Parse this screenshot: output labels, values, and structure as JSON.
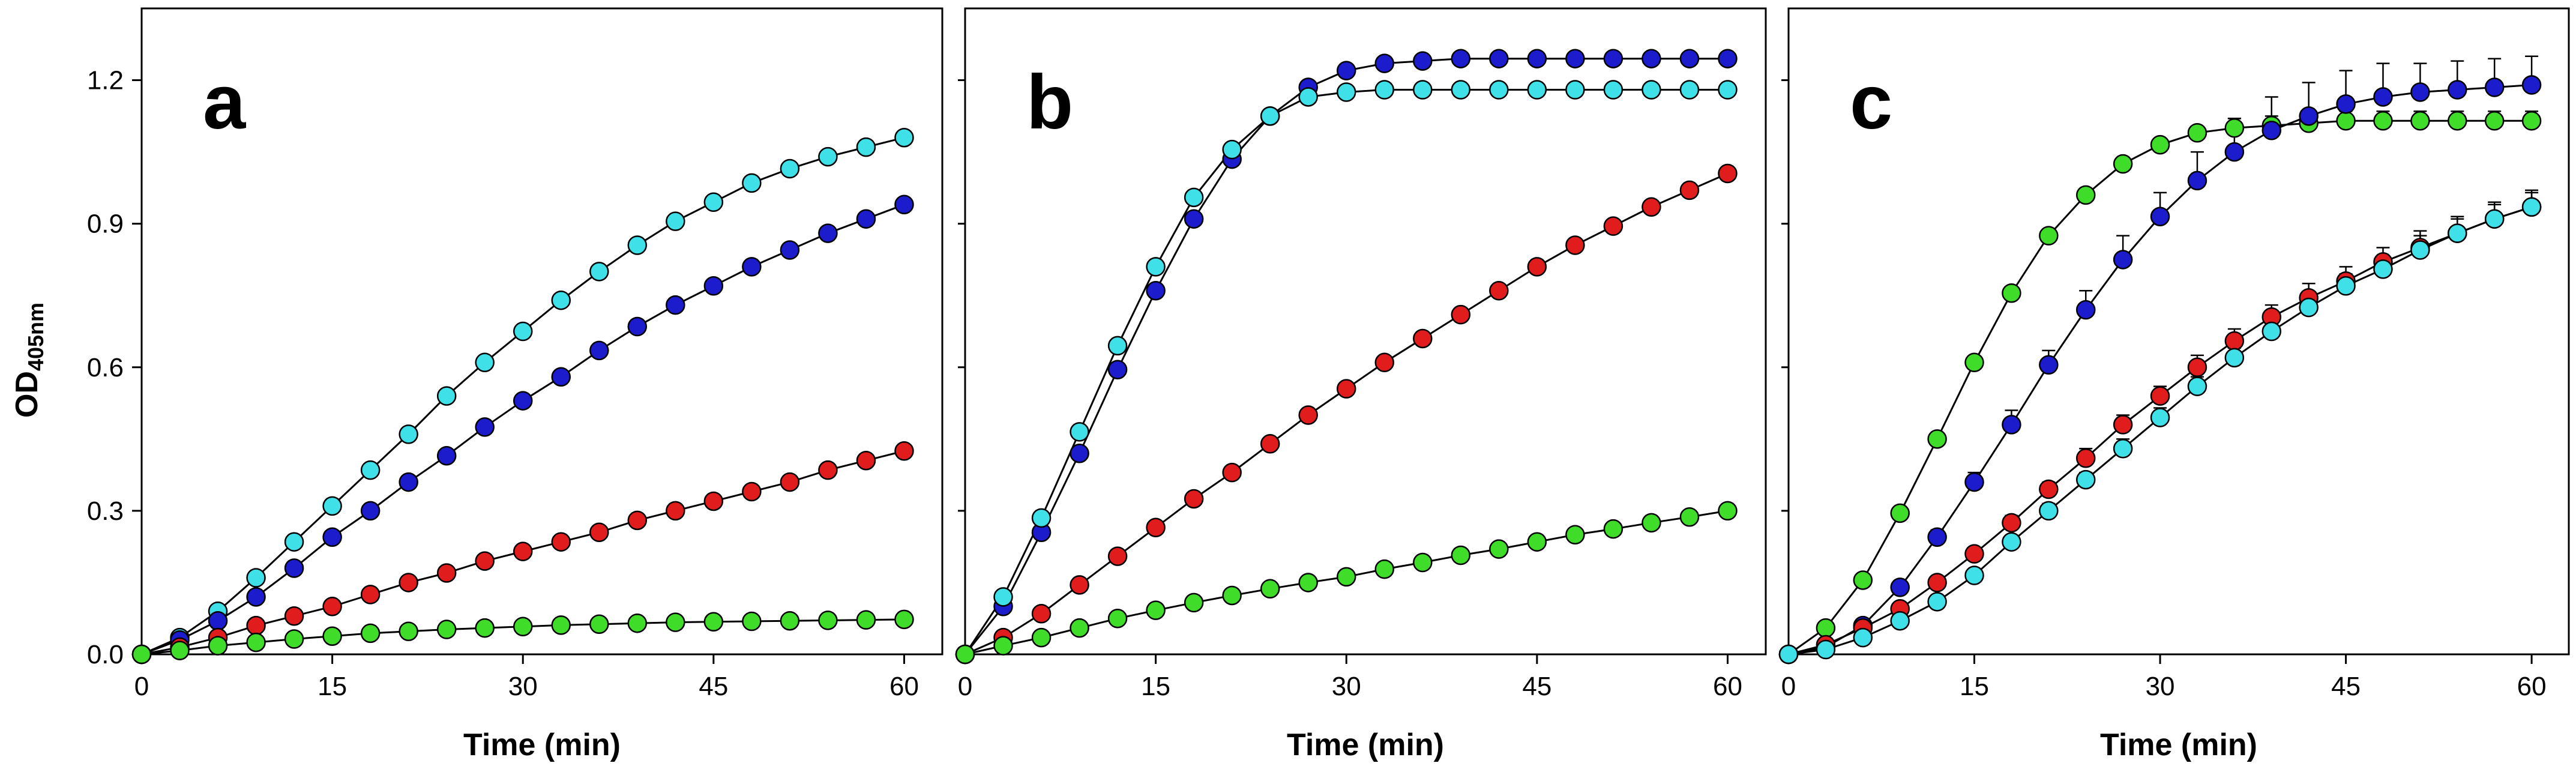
{
  "chart_data": [
    {
      "type": "line",
      "panel_label": "a",
      "xlabel": "Time (min)",
      "ylabel": "OD405nm",
      "ylabel_main": "OD",
      "ylabel_sub": "405nm",
      "xlim": [
        0,
        63
      ],
      "ylim": [
        0,
        1.35
      ],
      "xticks": [
        0,
        15,
        30,
        45,
        60
      ],
      "yticks": [
        0.0,
        0.3,
        0.6,
        0.9,
        1.2
      ],
      "xtick_labels": [
        "0",
        "15",
        "30",
        "45",
        "60"
      ],
      "ytick_labels": [
        "0.0",
        "0.3",
        "0.6",
        "0.9",
        "1.2"
      ],
      "x": [
        0,
        3,
        6,
        9,
        12,
        15,
        18,
        21,
        24,
        27,
        30,
        33,
        36,
        39,
        42,
        45,
        48,
        51,
        54,
        57,
        60
      ],
      "series": [
        {
          "name": "cyan",
          "color": "#3fe0e8",
          "values": [
            0.0,
            0.035,
            0.09,
            0.16,
            0.235,
            0.31,
            0.385,
            0.46,
            0.54,
            0.61,
            0.675,
            0.74,
            0.8,
            0.855,
            0.905,
            0.945,
            0.985,
            1.015,
            1.04,
            1.06,
            1.08
          ]
        },
        {
          "name": "blue",
          "color": "#1c1ccc",
          "values": [
            0.0,
            0.03,
            0.07,
            0.12,
            0.18,
            0.245,
            0.3,
            0.36,
            0.415,
            0.475,
            0.53,
            0.58,
            0.635,
            0.685,
            0.73,
            0.77,
            0.81,
            0.845,
            0.88,
            0.91,
            0.94
          ]
        },
        {
          "name": "red",
          "color": "#e01c1c",
          "values": [
            0.0,
            0.015,
            0.035,
            0.06,
            0.08,
            0.1,
            0.125,
            0.15,
            0.17,
            0.195,
            0.215,
            0.235,
            0.255,
            0.28,
            0.3,
            0.32,
            0.34,
            0.36,
            0.385,
            0.405,
            0.425
          ]
        },
        {
          "name": "green",
          "color": "#3fdc2a",
          "values": [
            0.0,
            0.008,
            0.018,
            0.025,
            0.032,
            0.038,
            0.044,
            0.048,
            0.052,
            0.055,
            0.058,
            0.061,
            0.063,
            0.065,
            0.067,
            0.068,
            0.069,
            0.07,
            0.071,
            0.072,
            0.073
          ]
        }
      ],
      "error_bars": false
    },
    {
      "type": "line",
      "panel_label": "b",
      "xlabel": "Time (min)",
      "xlim": [
        0,
        63
      ],
      "ylim": [
        0,
        1.35
      ],
      "xticks": [
        0,
        15,
        30,
        45,
        60
      ],
      "yticks": [
        0.0,
        0.3,
        0.6,
        0.9,
        1.2
      ],
      "xtick_labels": [
        "0",
        "15",
        "30",
        "45",
        "60"
      ],
      "x": [
        0,
        3,
        6,
        9,
        12,
        15,
        18,
        21,
        24,
        27,
        30,
        33,
        36,
        39,
        42,
        45,
        48,
        51,
        54,
        57,
        60
      ],
      "series": [
        {
          "name": "blue",
          "color": "#1c1ccc",
          "values": [
            0.0,
            0.1,
            0.255,
            0.42,
            0.595,
            0.76,
            0.91,
            1.035,
            1.125,
            1.185,
            1.22,
            1.235,
            1.24,
            1.245,
            1.245,
            1.245,
            1.245,
            1.245,
            1.245,
            1.245,
            1.245
          ]
        },
        {
          "name": "cyan",
          "color": "#3fe0e8",
          "values": [
            0.0,
            0.12,
            0.285,
            0.465,
            0.645,
            0.81,
            0.955,
            1.055,
            1.125,
            1.165,
            1.175,
            1.18,
            1.18,
            1.18,
            1.18,
            1.18,
            1.18,
            1.18,
            1.18,
            1.18,
            1.18
          ]
        },
        {
          "name": "red",
          "color": "#e01c1c",
          "values": [
            0.0,
            0.035,
            0.085,
            0.145,
            0.205,
            0.265,
            0.325,
            0.38,
            0.44,
            0.5,
            0.555,
            0.61,
            0.66,
            0.71,
            0.76,
            0.81,
            0.855,
            0.895,
            0.935,
            0.97,
            1.005
          ]
        },
        {
          "name": "green",
          "color": "#3fdc2a",
          "values": [
            0.0,
            0.018,
            0.035,
            0.055,
            0.075,
            0.092,
            0.108,
            0.123,
            0.137,
            0.15,
            0.162,
            0.178,
            0.192,
            0.207,
            0.22,
            0.235,
            0.25,
            0.262,
            0.275,
            0.287,
            0.3
          ]
        }
      ],
      "error_bars": false
    },
    {
      "type": "line",
      "panel_label": "c",
      "xlabel": "Time (min)",
      "xlim": [
        0,
        63
      ],
      "ylim": [
        0,
        1.35
      ],
      "xticks": [
        0,
        15,
        30,
        45,
        60
      ],
      "yticks": [
        0.0,
        0.3,
        0.6,
        0.9,
        1.2
      ],
      "xtick_labels": [
        "0",
        "15",
        "30",
        "45",
        "60"
      ],
      "x": [
        0,
        3,
        6,
        9,
        12,
        15,
        18,
        21,
        24,
        27,
        30,
        33,
        36,
        39,
        42,
        45,
        48,
        51,
        54,
        57,
        60
      ],
      "series": [
        {
          "name": "green",
          "color": "#3fdc2a",
          "values": [
            0.0,
            0.055,
            0.155,
            0.295,
            0.45,
            0.61,
            0.755,
            0.875,
            0.96,
            1.025,
            1.065,
            1.09,
            1.1,
            1.105,
            1.11,
            1.115,
            1.115,
            1.115,
            1.115,
            1.115,
            1.115
          ],
          "errors": [
            0,
            0,
            0,
            0,
            0,
            0,
            0,
            0,
            0,
            0,
            0,
            0.01,
            0.02,
            0.02,
            0.02,
            0.02,
            0.02,
            0.02,
            0.02,
            0.02,
            0.02
          ]
        },
        {
          "name": "blue",
          "color": "#1c1ccc",
          "values": [
            0.0,
            0.015,
            0.06,
            0.14,
            0.245,
            0.36,
            0.48,
            0.605,
            0.72,
            0.825,
            0.915,
            0.99,
            1.05,
            1.095,
            1.125,
            1.15,
            1.165,
            1.175,
            1.18,
            1.185,
            1.19
          ],
          "errors": [
            0,
            0,
            0.01,
            0.01,
            0.015,
            0.02,
            0.03,
            0.03,
            0.04,
            0.05,
            0.05,
            0.06,
            0.07,
            0.07,
            0.07,
            0.07,
            0.07,
            0.06,
            0.06,
            0.06,
            0.06
          ]
        },
        {
          "name": "red",
          "color": "#e01c1c",
          "values": [
            0.0,
            0.02,
            0.055,
            0.095,
            0.15,
            0.21,
            0.275,
            0.345,
            0.41,
            0.48,
            0.54,
            0.6,
            0.655,
            0.705,
            0.745,
            0.78,
            0.82,
            0.85,
            0.88,
            0.91,
            0.935
          ],
          "errors": [
            0,
            0,
            0.005,
            0.01,
            0.01,
            0.01,
            0.015,
            0.015,
            0.02,
            0.02,
            0.02,
            0.025,
            0.025,
            0.025,
            0.03,
            0.03,
            0.03,
            0.035,
            0.035,
            0.035,
            0.035
          ]
        },
        {
          "name": "cyan",
          "color": "#3fe0e8",
          "values": [
            0.0,
            0.01,
            0.035,
            0.07,
            0.11,
            0.165,
            0.235,
            0.3,
            0.365,
            0.43,
            0.495,
            0.56,
            0.62,
            0.675,
            0.725,
            0.77,
            0.805,
            0.845,
            0.88,
            0.91,
            0.935
          ],
          "errors": [
            0,
            0,
            0.005,
            0.01,
            0.01,
            0.01,
            0.01,
            0.015,
            0.015,
            0.02,
            0.02,
            0.02,
            0.02,
            0.025,
            0.025,
            0.025,
            0.025,
            0.03,
            0.03,
            0.03,
            0.03
          ]
        }
      ],
      "error_bars": true
    }
  ]
}
